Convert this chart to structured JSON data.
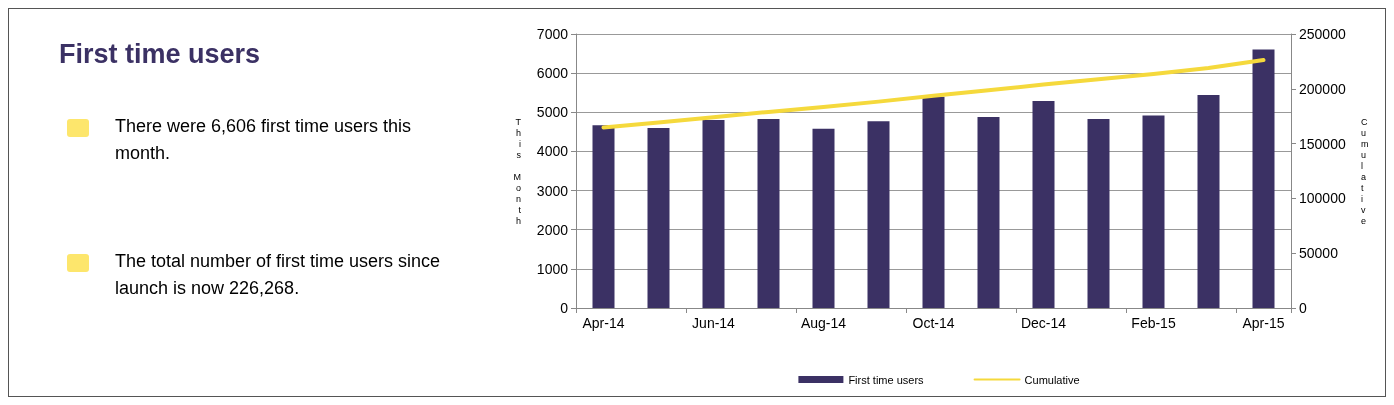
{
  "chart_data": {
    "type": "bar",
    "title": "First time users",
    "annotations": [
      "There were 6,606 first time users this month.",
      "The total number of first time users since launch is now 226,268."
    ],
    "categories": [
      "Apr-14",
      null,
      "Jun-14",
      null,
      "Aug-14",
      null,
      "Oct-14",
      null,
      "Dec-14",
      null,
      "Feb-15",
      null,
      "Apr-15"
    ],
    "series": [
      {
        "name": "First time users",
        "color": "#3b3164",
        "values": [
          4670,
          4600,
          4800,
          4830,
          4580,
          4770,
          5400,
          4880,
          5290,
          4830,
          4920,
          5440,
          6606
        ]
      },
      {
        "name": "Cumulative",
        "type": "line",
        "axis": "y2",
        "color": "#f5d93c",
        "values": [
          164700,
          169300,
          174100,
          178900,
          183500,
          188300,
          193700,
          198600,
          203900,
          208700,
          213600,
          219000,
          226268
        ]
      }
    ],
    "ylabel": "This Month",
    "y2label": "Cumulative",
    "ylim": [
      0,
      7000
    ],
    "yticks": [
      0,
      1000,
      2000,
      3000,
      4000,
      5000,
      6000,
      7000
    ],
    "y2lim": [
      0,
      250000
    ],
    "y2ticks": [
      0,
      50000,
      100000,
      150000,
      200000,
      250000
    ],
    "grid": "y",
    "legend": "bottom",
    "marker": "none"
  }
}
